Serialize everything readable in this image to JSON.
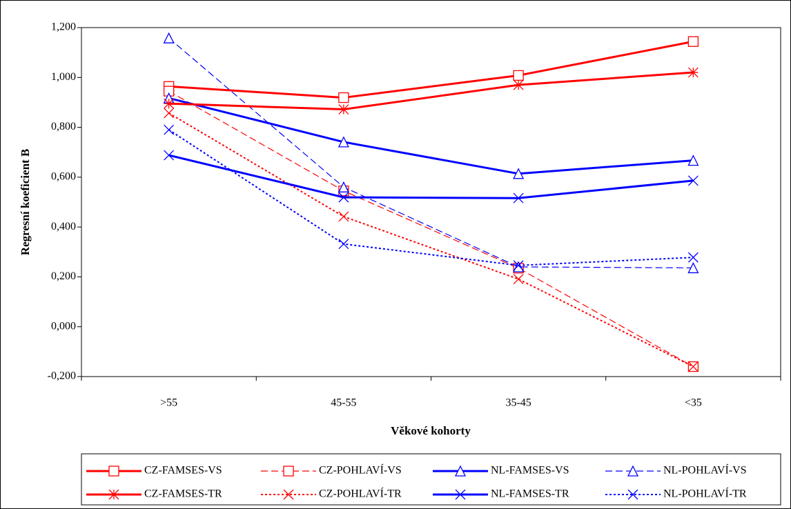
{
  "chart_data": {
    "type": "line",
    "y_label": "Regresní koeficient B",
    "x_label": "Věkové kohorty",
    "categories": [
      ">55",
      "45-55",
      "35-45",
      "<35"
    ],
    "ylim": [
      -0.2,
      1.2
    ],
    "yticks": [
      {
        "value": -0.2,
        "label": "-0,200"
      },
      {
        "value": 0,
        "label": "0,000"
      },
      {
        "value": 0.2,
        "label": "0,200"
      },
      {
        "value": 0.4,
        "label": "0,400"
      },
      {
        "value": 0.6,
        "label": "0,600"
      },
      {
        "value": 0.8,
        "label": "0,800"
      },
      {
        "value": 1.0,
        "label": "1,000"
      },
      {
        "value": 1.2,
        "label": "1,200"
      }
    ],
    "legend": "bottom",
    "series": [
      {
        "name": "CZ-FAMSES-VS",
        "color": "#ff0000",
        "dash": "solid",
        "marker": "square",
        "values": [
          0.964,
          0.919,
          1.008,
          1.144
        ]
      },
      {
        "name": "CZ-POHLAVÍ-VS",
        "color": "#ff0000",
        "dash": "dashed",
        "marker": "square",
        "values": [
          0.945,
          0.545,
          0.235,
          -0.16
        ]
      },
      {
        "name": "NL-FAMSES-VS",
        "color": "#0000ff",
        "dash": "solid",
        "marker": "triangle",
        "values": [
          0.917,
          0.741,
          0.614,
          0.667
        ]
      },
      {
        "name": "NL-POHLAVÍ-VS",
        "color": "#0000ff",
        "dash": "dashed",
        "marker": "triangle",
        "values": [
          1.158,
          0.56,
          0.24,
          0.236
        ]
      },
      {
        "name": "CZ-FAMSES-TR",
        "color": "#ff0000",
        "dash": "solid",
        "marker": "star",
        "values": [
          0.895,
          0.872,
          0.97,
          1.02
        ]
      },
      {
        "name": "CZ-POHLAVÍ-TR",
        "color": "#ff0000",
        "dash": "dotted",
        "marker": "x",
        "values": [
          0.857,
          0.442,
          0.191,
          -0.16
        ]
      },
      {
        "name": "NL-FAMSES-TR",
        "color": "#0000ff",
        "dash": "solid",
        "marker": "x",
        "values": [
          0.688,
          0.519,
          0.516,
          0.586
        ]
      },
      {
        "name": "NL-POHLAVÍ-TR",
        "color": "#0000ff",
        "dash": "dotted",
        "marker": "x",
        "values": [
          0.79,
          0.332,
          0.246,
          0.278
        ]
      }
    ]
  }
}
